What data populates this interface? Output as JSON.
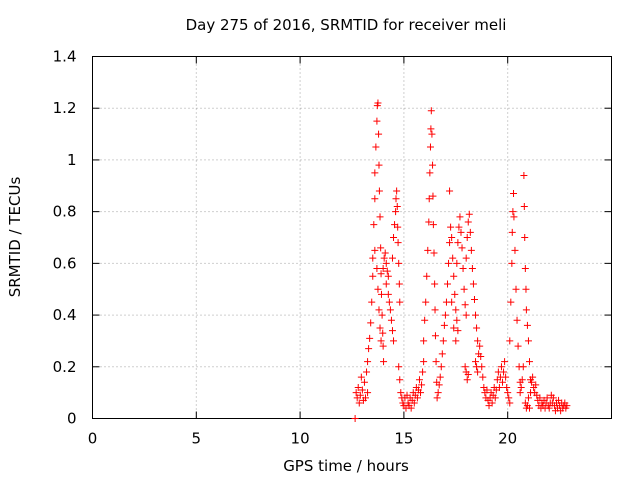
{
  "chart_data": {
    "type": "scatter",
    "title": "Day 275 of 2016, SRMTID for receiver meli",
    "xlabel": "GPS time / hours",
    "ylabel": "SRMTID / TECUs",
    "xlim": [
      0,
      25
    ],
    "ylim": [
      0,
      1.4
    ],
    "x_ticks": [
      0,
      5,
      10,
      15,
      20
    ],
    "y_ticks": [
      0,
      0.2,
      0.4,
      0.6,
      0.8,
      1,
      1.2,
      1.4
    ],
    "x_tick_labels": [
      "0",
      "5",
      "10",
      "15",
      "20"
    ],
    "y_tick_labels": [
      "0",
      "0.2",
      "0.4",
      "0.6",
      "0.8",
      "1",
      "1.2",
      "1.4"
    ],
    "grid": true,
    "legend": "none",
    "marker": "plus",
    "color": "#ff0000",
    "points": [
      [
        12.65,
        0.0
      ],
      [
        12.7,
        0.1
      ],
      [
        12.75,
        0.08
      ],
      [
        12.8,
        0.12
      ],
      [
        12.85,
        0.06
      ],
      [
        12.9,
        0.09
      ],
      [
        12.95,
        0.16
      ],
      [
        13.0,
        0.11
      ],
      [
        13.05,
        0.07
      ],
      [
        13.1,
        0.14
      ],
      [
        13.15,
        0.08
      ],
      [
        13.2,
        0.18
      ],
      [
        13.25,
        0.1
      ],
      [
        13.25,
        0.22
      ],
      [
        13.3,
        0.27
      ],
      [
        13.35,
        0.31
      ],
      [
        13.4,
        0.37
      ],
      [
        13.45,
        0.45
      ],
      [
        13.5,
        0.55
      ],
      [
        13.5,
        0.62
      ],
      [
        13.55,
        0.75
      ],
      [
        13.6,
        0.85
      ],
      [
        13.6,
        0.95
      ],
      [
        13.65,
        1.05
      ],
      [
        13.7,
        1.15
      ],
      [
        13.72,
        1.21
      ],
      [
        13.75,
        1.22
      ],
      [
        13.78,
        1.1
      ],
      [
        13.8,
        0.98
      ],
      [
        13.82,
        0.88
      ],
      [
        13.85,
        0.78
      ],
      [
        13.88,
        0.66
      ],
      [
        13.9,
        0.56
      ],
      [
        13.92,
        0.48
      ],
      [
        13.95,
        0.4
      ],
      [
        13.98,
        0.33
      ],
      [
        14.0,
        0.28
      ],
      [
        14.02,
        0.22
      ],
      [
        13.6,
        0.65
      ],
      [
        13.7,
        0.58
      ],
      [
        13.75,
        0.5
      ],
      [
        13.8,
        0.42
      ],
      [
        13.85,
        0.35
      ],
      [
        13.9,
        0.3
      ],
      [
        14.0,
        0.58
      ],
      [
        14.05,
        0.62
      ],
      [
        14.1,
        0.64
      ],
      [
        14.15,
        0.6
      ],
      [
        14.2,
        0.57
      ],
      [
        14.25,
        0.55
      ],
      [
        14.15,
        0.52
      ],
      [
        14.25,
        0.48
      ],
      [
        14.3,
        0.45
      ],
      [
        14.35,
        0.42
      ],
      [
        14.4,
        0.38
      ],
      [
        14.45,
        0.34
      ],
      [
        14.5,
        0.3
      ],
      [
        14.45,
        0.62
      ],
      [
        14.5,
        0.7
      ],
      [
        14.55,
        0.75
      ],
      [
        14.6,
        0.8
      ],
      [
        14.62,
        0.85
      ],
      [
        14.65,
        0.88
      ],
      [
        14.68,
        0.82
      ],
      [
        14.7,
        0.74
      ],
      [
        14.72,
        0.68
      ],
      [
        14.75,
        0.6
      ],
      [
        14.78,
        0.52
      ],
      [
        14.8,
        0.45
      ],
      [
        14.75,
        0.2
      ],
      [
        14.8,
        0.15
      ],
      [
        14.85,
        0.1
      ],
      [
        14.9,
        0.08
      ],
      [
        14.95,
        0.06
      ],
      [
        15.0,
        0.05
      ],
      [
        15.05,
        0.08
      ],
      [
        15.1,
        0.04
      ],
      [
        15.15,
        0.09
      ],
      [
        15.2,
        0.06
      ],
      [
        15.25,
        0.05
      ],
      [
        15.3,
        0.08
      ],
      [
        15.35,
        0.04
      ],
      [
        15.4,
        0.07
      ],
      [
        15.45,
        0.1
      ],
      [
        15.5,
        0.06
      ],
      [
        15.55,
        0.09
      ],
      [
        15.6,
        0.12
      ],
      [
        15.65,
        0.08
      ],
      [
        15.7,
        0.11
      ],
      [
        15.75,
        0.15
      ],
      [
        15.8,
        0.1
      ],
      [
        15.85,
        0.13
      ],
      [
        15.9,
        0.18
      ],
      [
        15.95,
        0.22
      ],
      [
        15.95,
        0.3
      ],
      [
        16.0,
        0.38
      ],
      [
        16.05,
        0.45
      ],
      [
        16.1,
        0.55
      ],
      [
        16.15,
        0.65
      ],
      [
        16.2,
        0.76
      ],
      [
        16.22,
        0.85
      ],
      [
        16.25,
        0.95
      ],
      [
        16.28,
        1.05
      ],
      [
        16.3,
        1.12
      ],
      [
        16.32,
        1.19
      ],
      [
        16.35,
        1.1
      ],
      [
        16.38,
        0.98
      ],
      [
        16.4,
        0.86
      ],
      [
        16.42,
        0.75
      ],
      [
        16.45,
        0.64
      ],
      [
        16.48,
        0.52
      ],
      [
        16.5,
        0.42
      ],
      [
        16.52,
        0.32
      ],
      [
        16.55,
        0.22
      ],
      [
        16.58,
        0.14
      ],
      [
        16.6,
        0.08
      ],
      [
        16.65,
        0.1
      ],
      [
        16.7,
        0.13
      ],
      [
        16.75,
        0.16
      ],
      [
        16.8,
        0.2
      ],
      [
        16.85,
        0.25
      ],
      [
        16.9,
        0.3
      ],
      [
        16.95,
        0.36
      ],
      [
        17.0,
        0.4
      ],
      [
        17.05,
        0.45
      ],
      [
        17.1,
        0.52
      ],
      [
        17.15,
        0.6
      ],
      [
        17.2,
        0.68
      ],
      [
        17.25,
        0.74
      ],
      [
        17.3,
        0.7
      ],
      [
        17.35,
        0.62
      ],
      [
        17.4,
        0.55
      ],
      [
        17.45,
        0.48
      ],
      [
        17.5,
        0.42
      ],
      [
        17.55,
        0.38
      ],
      [
        17.6,
        0.34
      ],
      [
        17.2,
        0.88
      ],
      [
        17.3,
        0.45
      ],
      [
        17.4,
        0.35
      ],
      [
        17.5,
        0.3
      ],
      [
        17.55,
        0.6
      ],
      [
        17.6,
        0.68
      ],
      [
        17.65,
        0.74
      ],
      [
        17.7,
        0.78
      ],
      [
        17.75,
        0.72
      ],
      [
        17.8,
        0.66
      ],
      [
        17.85,
        0.58
      ],
      [
        17.9,
        0.5
      ],
      [
        17.95,
        0.44
      ],
      [
        18.0,
        0.4
      ],
      [
        17.95,
        0.2
      ],
      [
        18.0,
        0.18
      ],
      [
        18.05,
        0.15
      ],
      [
        18.1,
        0.17
      ],
      [
        18.0,
        0.62
      ],
      [
        18.05,
        0.7
      ],
      [
        18.1,
        0.76
      ],
      [
        18.15,
        0.79
      ],
      [
        18.2,
        0.72
      ],
      [
        18.25,
        0.65
      ],
      [
        18.3,
        0.58
      ],
      [
        18.35,
        0.52
      ],
      [
        18.4,
        0.46
      ],
      [
        18.45,
        0.4
      ],
      [
        18.5,
        0.35
      ],
      [
        18.55,
        0.3
      ],
      [
        18.45,
        0.22
      ],
      [
        18.5,
        0.2
      ],
      [
        18.55,
        0.18
      ],
      [
        18.6,
        0.25
      ],
      [
        18.65,
        0.28
      ],
      [
        18.7,
        0.24
      ],
      [
        18.75,
        0.2
      ],
      [
        18.8,
        0.16
      ],
      [
        18.85,
        0.12
      ],
      [
        18.9,
        0.1
      ],
      [
        18.95,
        0.08
      ],
      [
        19.0,
        0.11
      ],
      [
        19.05,
        0.07
      ],
      [
        19.1,
        0.05
      ],
      [
        19.15,
        0.08
      ],
      [
        19.2,
        0.1
      ],
      [
        19.25,
        0.06
      ],
      [
        19.3,
        0.09
      ],
      [
        19.35,
        0.12
      ],
      [
        19.4,
        0.08
      ],
      [
        19.45,
        0.11
      ],
      [
        19.5,
        0.15
      ],
      [
        19.55,
        0.18
      ],
      [
        19.6,
        0.12
      ],
      [
        19.65,
        0.16
      ],
      [
        19.7,
        0.2
      ],
      [
        19.75,
        0.14
      ],
      [
        19.8,
        0.18
      ],
      [
        19.85,
        0.22
      ],
      [
        19.9,
        0.16
      ],
      [
        19.95,
        0.12
      ],
      [
        20.0,
        0.1
      ],
      [
        20.05,
        0.08
      ],
      [
        20.1,
        0.06
      ],
      [
        20.1,
        0.3
      ],
      [
        20.15,
        0.45
      ],
      [
        20.2,
        0.6
      ],
      [
        20.22,
        0.72
      ],
      [
        20.25,
        0.8
      ],
      [
        20.28,
        0.87
      ],
      [
        20.3,
        0.78
      ],
      [
        20.35,
        0.65
      ],
      [
        20.4,
        0.5
      ],
      [
        20.45,
        0.38
      ],
      [
        20.5,
        0.28
      ],
      [
        20.55,
        0.2
      ],
      [
        20.6,
        0.14
      ],
      [
        20.6,
        0.1
      ],
      [
        20.65,
        0.12
      ],
      [
        20.7,
        0.15
      ],
      [
        20.75,
        0.2
      ],
      [
        20.78,
        0.94
      ],
      [
        20.8,
        0.82
      ],
      [
        20.82,
        0.7
      ],
      [
        20.85,
        0.58
      ],
      [
        20.88,
        0.5
      ],
      [
        20.9,
        0.42
      ],
      [
        20.95,
        0.36
      ],
      [
        21.0,
        0.3
      ],
      [
        21.05,
        0.22
      ],
      [
        21.1,
        0.15
      ],
      [
        20.85,
        0.06
      ],
      [
        20.9,
        0.04
      ],
      [
        20.95,
        0.05
      ],
      [
        21.0,
        0.08
      ],
      [
        21.05,
        0.04
      ],
      [
        21.1,
        0.1
      ],
      [
        21.15,
        0.14
      ],
      [
        21.2,
        0.16
      ],
      [
        21.25,
        0.12
      ],
      [
        21.3,
        0.1
      ],
      [
        21.35,
        0.13
      ],
      [
        21.4,
        0.09
      ],
      [
        21.45,
        0.07
      ],
      [
        21.5,
        0.05
      ],
      [
        21.55,
        0.08
      ],
      [
        21.6,
        0.04
      ],
      [
        21.65,
        0.06
      ],
      [
        21.7,
        0.05
      ],
      [
        21.75,
        0.07
      ],
      [
        21.8,
        0.04
      ],
      [
        21.85,
        0.06
      ],
      [
        21.9,
        0.08
      ],
      [
        21.95,
        0.05
      ],
      [
        22.0,
        0.04
      ],
      [
        22.05,
        0.06
      ],
      [
        22.1,
        0.09
      ],
      [
        22.15,
        0.06
      ],
      [
        22.2,
        0.08
      ],
      [
        22.25,
        0.05
      ],
      [
        22.3,
        0.03
      ],
      [
        22.35,
        0.06
      ],
      [
        22.4,
        0.04
      ],
      [
        22.45,
        0.07
      ],
      [
        22.5,
        0.05
      ],
      [
        22.55,
        0.03
      ],
      [
        22.6,
        0.06
      ],
      [
        22.65,
        0.04
      ],
      [
        22.7,
        0.05
      ],
      [
        22.75,
        0.06
      ],
      [
        22.8,
        0.04
      ],
      [
        22.85,
        0.05
      ]
    ]
  }
}
